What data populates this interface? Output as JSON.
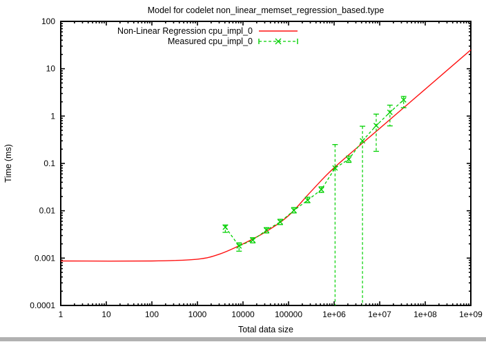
{
  "window": {
    "background": "#ffffff",
    "bottom_bar_color": "#b1b1b1"
  },
  "chart_data": {
    "type": "line",
    "title": "Model for codelet non_linear_memset_regression_based.type",
    "xlabel": "Total data size",
    "ylabel": "Time (ms)",
    "x_scale": "log",
    "y_scale": "log",
    "xlim": [
      1,
      1000000000
    ],
    "ylim": [
      0.0001,
      100
    ],
    "grid": false,
    "legend_position": "top-left-inside",
    "x_ticks": [
      {
        "label": "1",
        "value": 1
      },
      {
        "label": "10",
        "value": 10
      },
      {
        "label": "100",
        "value": 100
      },
      {
        "label": "1000",
        "value": 1000
      },
      {
        "label": "10000",
        "value": 10000
      },
      {
        "label": "100000",
        "value": 100000
      },
      {
        "label": "1e+06",
        "value": 1000000
      },
      {
        "label": "1e+07",
        "value": 10000000
      },
      {
        "label": "1e+08",
        "value": 100000000
      },
      {
        "label": "1e+09",
        "value": 1000000000
      }
    ],
    "y_ticks": [
      {
        "label": "100",
        "value": 100
      },
      {
        "label": "10",
        "value": 10
      },
      {
        "label": "1",
        "value": 1
      },
      {
        "label": "0.1",
        "value": 0.1
      },
      {
        "label": "0.01",
        "value": 0.01
      },
      {
        "label": "0.001",
        "value": 0.001
      },
      {
        "label": "0.0001",
        "value": 0.0001
      }
    ],
    "series": [
      {
        "name": "Non-Linear Regression cpu_impl_0",
        "kind": "regression-curve",
        "color": "#ff1111",
        "line_style": "solid",
        "x": [
          1,
          100,
          1000,
          3162,
          10000,
          31623,
          100000,
          316228,
          1000000,
          10000000,
          100000000,
          1000000000
        ],
        "y": [
          0.00087,
          0.00087,
          0.00095,
          0.00123,
          0.002,
          0.0036,
          0.0079,
          0.026,
          0.081,
          0.55,
          3.7,
          25
        ]
      },
      {
        "name": "Measured cpu_impl_0",
        "kind": "measured-errorbars",
        "color": "#00d000",
        "line_style": "dashed",
        "marker": "x",
        "points": [
          {
            "x": 4096,
            "y": 0.0045,
            "ylow": 0.0035,
            "yhigh": 0.005
          },
          {
            "x": 8192,
            "y": 0.0018,
            "ylow": 0.0014,
            "yhigh": 0.0021
          },
          {
            "x": 16384,
            "y": 0.0024,
            "ylow": 0.0021,
            "yhigh": 0.0027
          },
          {
            "x": 32768,
            "y": 0.0039,
            "ylow": 0.0034,
            "yhigh": 0.0044
          },
          {
            "x": 65536,
            "y": 0.0058,
            "ylow": 0.0051,
            "yhigh": 0.0066
          },
          {
            "x": 131072,
            "y": 0.0102,
            "ylow": 0.009,
            "yhigh": 0.0117
          },
          {
            "x": 262144,
            "y": 0.0167,
            "ylow": 0.0148,
            "yhigh": 0.0193
          },
          {
            "x": 524288,
            "y": 0.028,
            "ylow": 0.0244,
            "yhigh": 0.032
          },
          {
            "x": 1048576,
            "y": 0.08,
            "ylow": 0.0001,
            "yhigh": 0.25
          },
          {
            "x": 2097152,
            "y": 0.122,
            "ylow": 0.105,
            "yhigh": 0.143
          },
          {
            "x": 4194304,
            "y": 0.3,
            "ylow": 0.0001,
            "yhigh": 0.61
          },
          {
            "x": 8388608,
            "y": 0.63,
            "ylow": 0.18,
            "yhigh": 1.1
          },
          {
            "x": 16777216,
            "y": 1.2,
            "ylow": 0.62,
            "yhigh": 1.7
          },
          {
            "x": 33554432,
            "y": 2.2,
            "ylow": 1.5,
            "yhigh": 2.6
          }
        ]
      }
    ]
  }
}
